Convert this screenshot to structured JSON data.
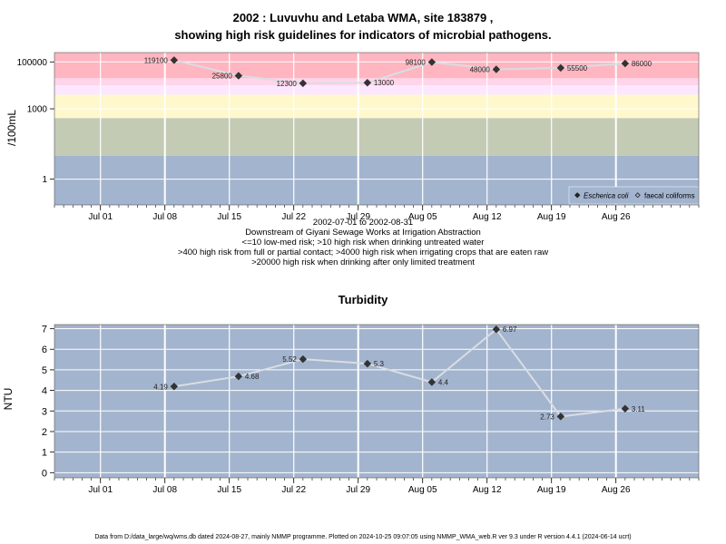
{
  "title_line1": "2002 : Luvuvhu and Letaba WMA, site 183879 ,",
  "title_line2": "showing high risk guidelines for indicators of microbial pathogens.",
  "caption": [
    "2002-07-01 to 2002-08-31",
    "Downstream of Giyani Sewage Works at Irrigation Abstraction",
    "<=10 low-med risk; >10 high risk when drinking untreated water",
    ">400 high risk from full or partial contact; >4000 high risk when irrigating crops that are eaten raw",
    ">20000 high risk when drinking after only limited treatment"
  ],
  "footer": "Data from D:/data_large/wq/wms.db dated 2024-08-27, mainly NMMP programme. Plotted on 2024-10-25 09:07:05 using NMMP_WMA_web.R ver 9.3 under R version 4.4.1 (2024-06-14 ucrt)",
  "colors": {
    "band_red": "#ffb6c1",
    "band_pink": "#ffd5ea",
    "band_lavender": "#fde6ff",
    "band_yellow": "#fff8cc",
    "band_olive": "#c4cbb5",
    "band_blue": "#a3b4ce",
    "series_line": "#d9dde3",
    "marker": "#333333"
  },
  "chart_data": [
    {
      "type": "line",
      "title": "",
      "ylabel": "/100mL",
      "yscale": "log",
      "ylim": [
        0.08,
        250000
      ],
      "ytick_values": [
        1,
        1000,
        100000
      ],
      "ytick_labels": [
        "1",
        "1000",
        "100000"
      ],
      "xlim": [
        "2002-06-26",
        "2002-09-04"
      ],
      "xtick_values": [
        "2002-07-01",
        "2002-07-08",
        "2002-07-15",
        "2002-07-22",
        "2002-07-29",
        "2002-08-05",
        "2002-08-12",
        "2002-08-19",
        "2002-08-26"
      ],
      "xtick_labels": [
        "Jul 01",
        "Jul 08",
        "Jul 15",
        "Jul 22",
        "Jul 29",
        "Aug 05",
        "Aug 12",
        "Aug 19",
        "Aug 26"
      ],
      "risk_bands": [
        {
          "from": 20000,
          "to": 250000,
          "color": "#ffb6c1"
        },
        {
          "from": 10000,
          "to": 20000,
          "color": "#ffd5ea"
        },
        {
          "from": 4000,
          "to": 10000,
          "color": "#fde6ff"
        },
        {
          "from": 400,
          "to": 4000,
          "color": "#fff8cc"
        },
        {
          "from": 10,
          "to": 400,
          "color": "#c4cbb5"
        },
        {
          "from": 0.08,
          "to": 10,
          "color": "#a3b4ce"
        }
      ],
      "legend": {
        "position": "bottom-right",
        "entries": [
          "Escherica coli",
          "faecal coliforms"
        ]
      },
      "series": [
        {
          "name": "faecal coliforms",
          "x": [
            "2002-07-09",
            "2002-07-16",
            "2002-07-23",
            "2002-07-30",
            "2002-08-06",
            "2002-08-13",
            "2002-08-20",
            "2002-08-27"
          ],
          "values": [
            119100,
            25800,
            12300,
            13000,
            98100,
            48000,
            55500,
            86000
          ],
          "labels": [
            "119100",
            "25800",
            "12300",
            "13000",
            "98100",
            "48000",
            "55500",
            "86000"
          ],
          "label_side": [
            "left",
            "left",
            "left",
            "right",
            "left",
            "left",
            "right",
            "right"
          ]
        }
      ]
    },
    {
      "type": "line",
      "title": "Turbidity",
      "ylabel": "NTU",
      "yscale": "linear",
      "ylim": [
        -0.25,
        7.2
      ],
      "ytick_values": [
        0,
        1,
        2,
        3,
        4,
        5,
        6,
        7
      ],
      "ytick_labels": [
        "0",
        "1",
        "2",
        "3",
        "4",
        "5",
        "6",
        "7"
      ],
      "xlim": [
        "2002-06-26",
        "2002-09-04"
      ],
      "xtick_values": [
        "2002-07-01",
        "2002-07-08",
        "2002-07-15",
        "2002-07-22",
        "2002-07-29",
        "2002-08-05",
        "2002-08-12",
        "2002-08-19",
        "2002-08-26"
      ],
      "xtick_labels": [
        "Jul 01",
        "Jul 08",
        "Jul 15",
        "Jul 22",
        "Jul 29",
        "Aug 05",
        "Aug 12",
        "Aug 19",
        "Aug 26"
      ],
      "series": [
        {
          "name": "",
          "x": [
            "2002-07-09",
            "2002-07-16",
            "2002-07-23",
            "2002-07-30",
            "2002-08-06",
            "2002-08-13",
            "2002-08-20",
            "2002-08-27"
          ],
          "values": [
            4.19,
            4.68,
            5.52,
            5.3,
            4.4,
            6.97,
            2.73,
            3.11
          ],
          "labels": [
            "4.19",
            "4.68",
            "5.52",
            "5.3",
            "4.4",
            "6.97",
            "2.73",
            "3.11"
          ],
          "label_side": [
            "left",
            "right",
            "left",
            "right",
            "right",
            "right",
            "left",
            "right"
          ]
        }
      ]
    }
  ]
}
